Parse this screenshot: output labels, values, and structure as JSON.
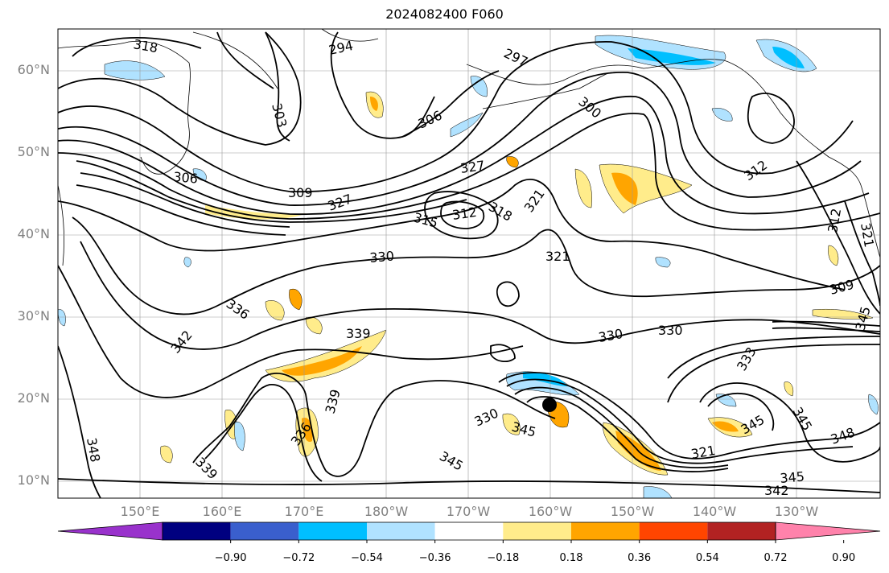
{
  "title": "2024082400 F060",
  "lat_labels": [
    "60°N",
    "50°N",
    "40°N",
    "30°N",
    "20°N",
    "10°N"
  ],
  "lon_labels": [
    "150°E",
    "160°E",
    "170°E",
    "180°W",
    "170°W",
    "160°W",
    "150°W",
    "140°W",
    "130°W"
  ],
  "contour_labels": [
    "318",
    "294",
    "297",
    "303",
    "306",
    "309",
    "312",
    "315",
    "321",
    "327",
    "300",
    "318",
    "321",
    "330",
    "336",
    "339",
    "342",
    "345",
    "348",
    "333",
    "309"
  ],
  "colorbar": {
    "ticks": [
      "−0.90",
      "−0.72",
      "−0.54",
      "−0.36",
      "−0.18",
      "0.18",
      "0.36",
      "0.54",
      "0.72",
      "0.90"
    ],
    "colors": [
      "#9932cc",
      "#000080",
      "#3a5fcd",
      "#00bfff",
      "#b0e2ff",
      "#ffffff",
      "#ffec8b",
      "#ffa500",
      "#ff4500",
      "#b22222",
      "#ff82ab"
    ]
  },
  "colors": {
    "pos_light": "#ffec8b",
    "pos_mid": "#ffa500",
    "neg_light": "#b0e2ff",
    "neg_mid": "#00bfff"
  }
}
